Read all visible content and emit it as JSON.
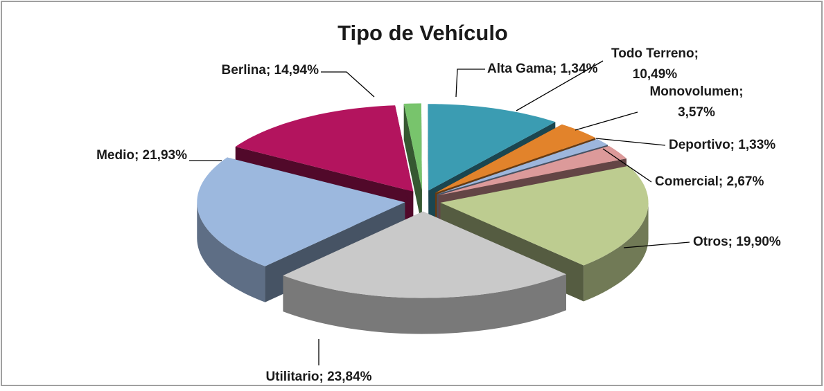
{
  "chart_data": {
    "type": "pie",
    "title": "Tipo de Vehículo",
    "values": [
      1.34,
      10.49,
      3.57,
      1.33,
      2.67,
      19.9,
      23.84,
      21.93,
      14.94
    ],
    "value_labels": [
      "Alta Gama; 1,34%",
      "Todo Terreno; 10,49%",
      "Monovolumen; 3,57%",
      "Deportivo; 1,33%",
      "Comercial; 2,67%",
      "Otros; 19,90%",
      "Utilitario; 23,84%",
      "Medio; 21,93%",
      "Berlina; 14,94%"
    ],
    "colors": [
      "#78c46c",
      "#3b9cb2",
      "#e2832b",
      "#9db6dc",
      "#dc9a9a",
      "#bdcc90",
      "#c9c9c9",
      "#9cb8de",
      "#b3145e"
    ]
  }
}
